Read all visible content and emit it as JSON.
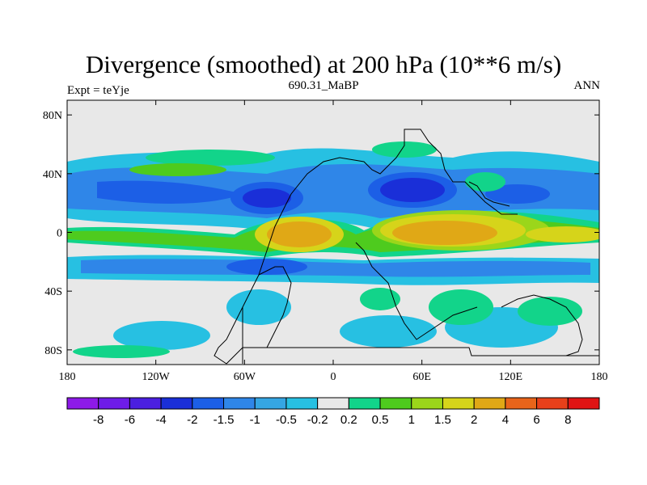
{
  "header": {
    "title": "Divergence (smoothed) at 200 hPa (10**6 m/s)",
    "left_label": "Expt = teYje",
    "center_label": "690.31_MaBP",
    "right_label": "ANN"
  },
  "chart_data": {
    "type": "heatmap",
    "title": "Divergence (smoothed) at 200 hPa (10**6 m/s)",
    "projection": "cylindrical-equidistant",
    "xlim": [
      -180,
      180
    ],
    "ylim": [
      -90,
      90
    ],
    "x_ticks": [
      {
        "value": -180,
        "label": "180"
      },
      {
        "value": -120,
        "label": "120W"
      },
      {
        "value": -60,
        "label": "60W"
      },
      {
        "value": 0,
        "label": "0"
      },
      {
        "value": 60,
        "label": "60E"
      },
      {
        "value": 120,
        "label": "120E"
      },
      {
        "value": 180,
        "label": "180"
      }
    ],
    "y_ticks": [
      {
        "value": 80,
        "label": "80N"
      },
      {
        "value": 40,
        "label": "40N"
      },
      {
        "value": 0,
        "label": "0"
      },
      {
        "value": -40,
        "label": "40S"
      },
      {
        "value": -80,
        "label": "80S"
      }
    ],
    "colorbar": {
      "levels": [
        "-8",
        "-6",
        "-4",
        "-2",
        "-1.5",
        "-1",
        "-0.5",
        "-0.2",
        "0.2",
        "0.5",
        "1",
        "1.5",
        "2",
        "4",
        "6",
        "8"
      ],
      "colors": [
        "#8d1ae8",
        "#6e1ce8",
        "#4b1fe0",
        "#1a2fd8",
        "#1c5fe6",
        "#2f86e8",
        "#35a6e3",
        "#27c0e2",
        "#e8e8e8",
        "#12d48a",
        "#4ecb1e",
        "#9bd61a",
        "#d6d41a",
        "#e0a816",
        "#e8641a",
        "#e8401a",
        "#e01414"
      ]
    },
    "features": [
      {
        "name": "positive-divergence-eastern-hemisphere-tropics",
        "lon": [
          40,
          180
        ],
        "lat": [
          -20,
          15
        ],
        "value_range": [
          "2",
          "4"
        ]
      },
      {
        "name": "positive-divergence-atlantic-tropics",
        "lon": [
          -40,
          10
        ],
        "lat": [
          -15,
          10
        ],
        "value_range": [
          "2",
          "4"
        ]
      },
      {
        "name": "negative-divergence-asia-midlatitudes",
        "lon": [
          30,
          100
        ],
        "lat": [
          20,
          45
        ],
        "value_range": [
          "-4",
          "-2"
        ]
      },
      {
        "name": "negative-divergence-north-atlantic",
        "lon": [
          -110,
          -40
        ],
        "lat": [
          15,
          35
        ],
        "value_range": [
          "-4",
          "-2"
        ]
      },
      {
        "name": "negative-divergence-southern-tropics",
        "lon": [
          -180,
          180
        ],
        "lat": [
          -35,
          -15
        ],
        "value_range": [
          "-1.5",
          "-0.5"
        ]
      }
    ]
  }
}
